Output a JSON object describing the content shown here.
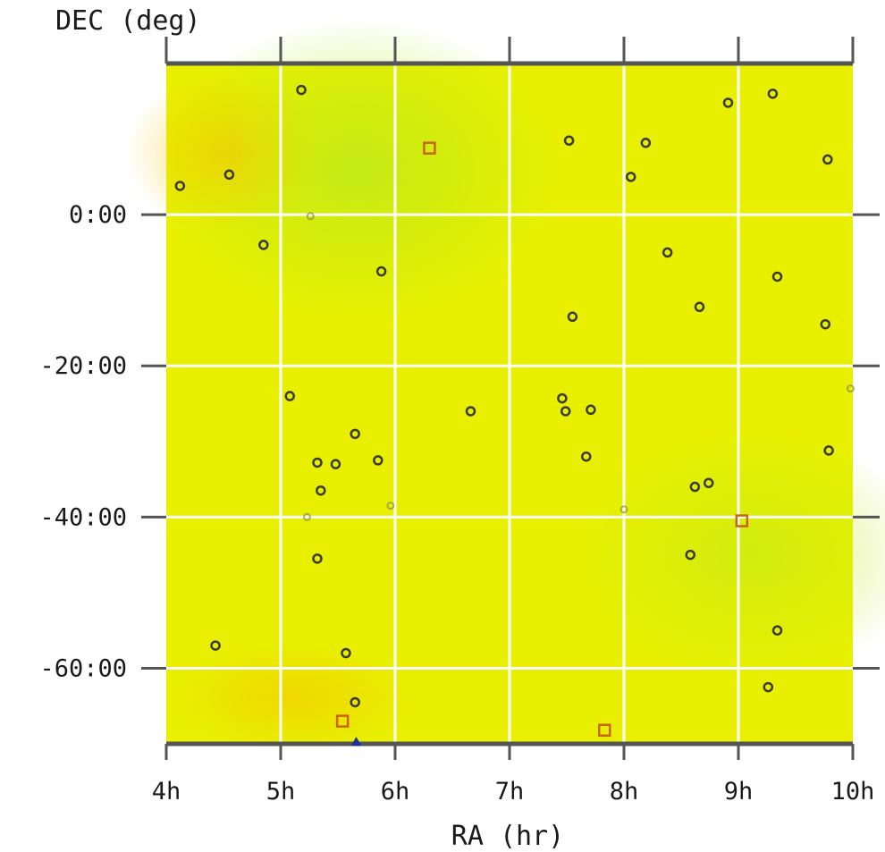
{
  "chart_data": {
    "type": "scatter",
    "xlabel": "RA (hr)",
    "ylabel": "DEC (deg)",
    "xlim": [
      4,
      10
    ],
    "ylim": [
      -70,
      20
    ],
    "x_ticks": [
      4,
      5,
      6,
      7,
      8,
      9,
      10
    ],
    "x_tick_labels": [
      "4h",
      "5h",
      "6h",
      "7h",
      "8h",
      "9h",
      "10h"
    ],
    "y_ticks": [
      0,
      -20,
      -40,
      -60
    ],
    "y_tick_labels": [
      "0:00",
      "-20:00",
      "-40:00",
      "-60:00"
    ],
    "grid": true,
    "background_color": "#e8f000",
    "grid_color": "#ffffff",
    "marker_color": "#3a3a3a",
    "series": [
      {
        "marker": "circle",
        "color": "#3a3a3a",
        "points": [
          {
            "x": 4.12,
            "y": 3.8
          },
          {
            "x": 4.55,
            "y": 5.3
          },
          {
            "x": 4.85,
            "y": -4.0
          },
          {
            "x": 5.18,
            "y": 16.5
          },
          {
            "x": 5.08,
            "y": -24.0
          },
          {
            "x": 5.32,
            "y": -32.8
          },
          {
            "x": 5.35,
            "y": -36.5
          },
          {
            "x": 5.48,
            "y": -33.0
          },
          {
            "x": 5.65,
            "y": -29.0
          },
          {
            "x": 5.85,
            "y": -32.5
          },
          {
            "x": 5.88,
            "y": -7.5
          },
          {
            "x": 5.32,
            "y": -45.5
          },
          {
            "x": 4.43,
            "y": -57.0
          },
          {
            "x": 5.57,
            "y": -58.0
          },
          {
            "x": 5.65,
            "y": -64.5
          },
          {
            "x": 6.66,
            "y": -26.0
          },
          {
            "x": 7.46,
            "y": -24.3
          },
          {
            "x": 7.49,
            "y": -26.0
          },
          {
            "x": 7.71,
            "y": -25.8
          },
          {
            "x": 7.67,
            "y": -32.0
          },
          {
            "x": 7.52,
            "y": 9.8
          },
          {
            "x": 7.55,
            "y": -13.5
          },
          {
            "x": 8.06,
            "y": 5.0
          },
          {
            "x": 8.19,
            "y": 9.5
          },
          {
            "x": 8.38,
            "y": -5.0
          },
          {
            "x": 8.66,
            "y": -12.2
          },
          {
            "x": 8.62,
            "y": -36.0
          },
          {
            "x": 8.74,
            "y": -35.5
          },
          {
            "x": 8.58,
            "y": -45.0
          },
          {
            "x": 8.91,
            "y": 14.8
          },
          {
            "x": 9.3,
            "y": 16.0
          },
          {
            "x": 9.34,
            "y": -8.2
          },
          {
            "x": 9.34,
            "y": -55.0
          },
          {
            "x": 9.26,
            "y": -62.5
          },
          {
            "x": 9.78,
            "y": 7.3
          },
          {
            "x": 9.76,
            "y": -14.5
          },
          {
            "x": 9.79,
            "y": -31.2
          }
        ]
      },
      {
        "marker": "square",
        "color": "#c86414",
        "points": [
          {
            "x": 6.3,
            "y": 8.8
          },
          {
            "x": 9.03,
            "y": -40.5
          },
          {
            "x": 5.54,
            "y": -67.0
          },
          {
            "x": 7.83,
            "y": -68.2
          }
        ]
      },
      {
        "marker": "faint",
        "color": "#8a8a50",
        "points": [
          {
            "x": 5.26,
            "y": -0.2
          },
          {
            "x": 5.23,
            "y": -40.0
          },
          {
            "x": 5.96,
            "y": -38.5
          },
          {
            "x": 8.0,
            "y": -39.0
          },
          {
            "x": 9.98,
            "y": -23.0
          }
        ]
      },
      {
        "marker": "triangle",
        "color": "#1e2fa0",
        "points": [
          {
            "x": 5.66,
            "y": -69.8
          }
        ]
      }
    ]
  }
}
